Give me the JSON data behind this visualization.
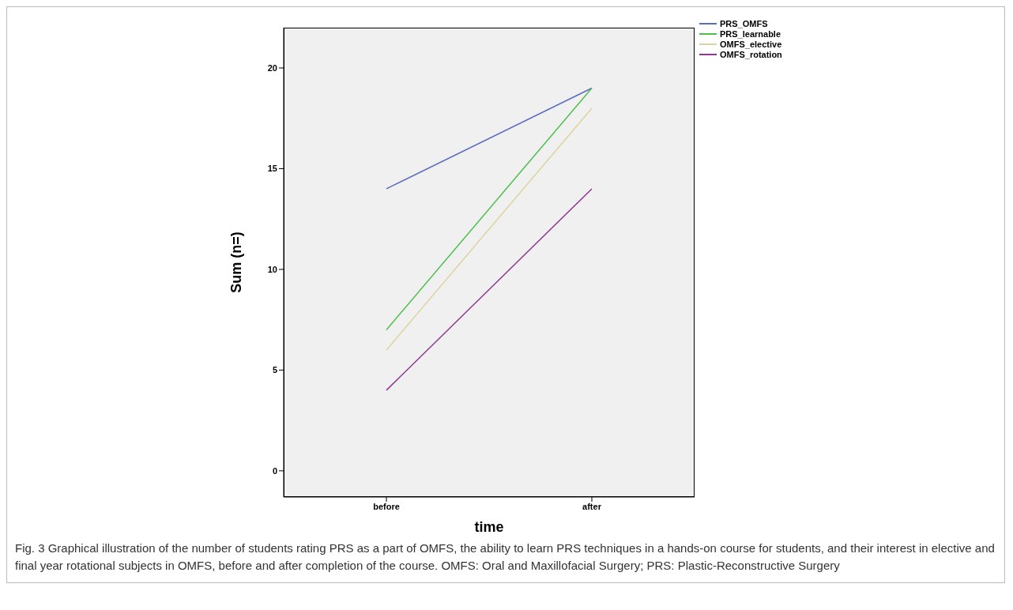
{
  "chart_data": {
    "type": "line",
    "xlabel": "time",
    "ylabel": "Sum (n=)",
    "categories": [
      "before",
      "after"
    ],
    "series": [
      {
        "name": "PRS_OMFS",
        "color": "#5b6cc0",
        "values": [
          14,
          19
        ]
      },
      {
        "name": "PRS_learnable",
        "color": "#4cbf4c",
        "values": [
          7,
          19
        ]
      },
      {
        "name": "OMFS_elective",
        "color": "#ddd39f",
        "values": [
          6,
          18
        ]
      },
      {
        "name": "OMFS_rotation",
        "color": "#8b3a8f",
        "values": [
          4,
          14
        ]
      }
    ],
    "ylim": [
      -1.3,
      22
    ],
    "yticks": [
      0,
      5,
      10,
      15,
      20
    ],
    "grid": false,
    "legend": "top right",
    "marker": "none",
    "line_style": "solid",
    "annotations": [
      "Fig. 3 Graphical illustration of the number of students rating PRS as a part of OMFS, the ability to learn PRS techniques in a hands-on course for students, and their interest in elective and final year rotational subjects in OMFS, before and after completion of the course. OMFS: Oral and Maxillofacial Surgery; PRS: Plastic-Reconstructive Surgery"
    ]
  }
}
